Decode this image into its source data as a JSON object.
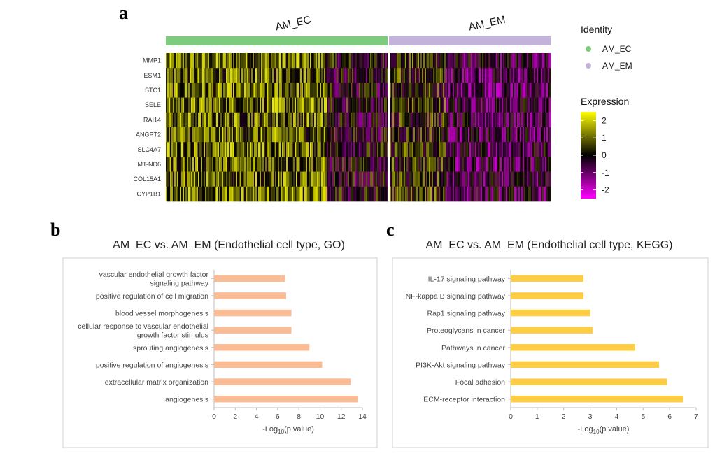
{
  "panels": {
    "a": "a",
    "b": "b",
    "c": "c"
  },
  "chart_data": [
    {
      "type": "heatmap",
      "groups": [
        "AM_EC",
        "AM_EM"
      ],
      "group_colors": [
        "#7dcb7d",
        "#c3b3da"
      ],
      "genes": [
        "MMP1",
        "ESM1",
        "STC1",
        "SELE",
        "RAI14",
        "ANGPT2",
        "SLC4A7",
        "MT-ND6",
        "COL15A1",
        "CYP1B1"
      ],
      "legend": {
        "identity_title": "Identity",
        "identity_items": [
          "AM_EC",
          "AM_EM"
        ],
        "expression_title": "Expression",
        "scale_ticks": [
          "2",
          "1",
          "0",
          "-1",
          "-2"
        ],
        "scale_range": [
          -2.5,
          2.5
        ],
        "colors": {
          "high": "#ffff00",
          "mid": "#000000",
          "low": "#ff00ff"
        }
      }
    },
    {
      "type": "bar",
      "orientation": "horizontal",
      "title": "AM_EC vs. AM_EM (Endothelial cell type, GO)",
      "categories": [
        "vascular endothelial growth factor signaling pathway",
        "positive regulation of cell migration",
        "blood vessel morphogenesis",
        "cellular response to vascular endothelial growth factor stimulus",
        "sprouting angiogenesis",
        "positive regulation of angiogenesis",
        "extracellular matrix organization",
        "angiogenesis"
      ],
      "category_lines": [
        [
          "vascular endothelial growth factor",
          "signaling pathway"
        ],
        [
          "positive regulation of cell migration"
        ],
        [
          "blood vessel morphogenesis"
        ],
        [
          "cellular response to vascular endothelial",
          "growth factor stimulus"
        ],
        [
          "sprouting angiogenesis"
        ],
        [
          "positive regulation of angiogenesis"
        ],
        [
          "extracellular matrix organization"
        ],
        [
          "angiogenesis"
        ]
      ],
      "values": [
        6.7,
        6.8,
        7.3,
        7.3,
        9.0,
        10.2,
        12.9,
        13.6
      ],
      "xlim": [
        0,
        14
      ],
      "xticks": [
        "0",
        "2",
        "4",
        "6",
        "8",
        "10",
        "12",
        "14"
      ],
      "xlabel_pre": "-Log",
      "xlabel_sub": "10",
      "xlabel_post": "(p value)",
      "color": "#f9bc94"
    },
    {
      "type": "bar",
      "orientation": "horizontal",
      "title": "AM_EC vs. AM_EM (Endothelial cell type, KEGG)",
      "categories": [
        "IL-17 signaling pathway",
        "NF-kappa B signaling pathway",
        "Rap1 signaling pathway",
        "Proteoglycans in cancer",
        "Pathways in cancer",
        "PI3K-Akt signaling pathway",
        "Focal adhesion",
        "ECM-receptor interaction"
      ],
      "category_lines": [
        [
          "IL-17 signaling pathway"
        ],
        [
          "NF-kappa B signaling pathway"
        ],
        [
          "Rap1 signaling pathway"
        ],
        [
          "Proteoglycans in cancer"
        ],
        [
          "Pathways in cancer"
        ],
        [
          "PI3K-Akt signaling pathway"
        ],
        [
          "Focal adhesion"
        ],
        [
          "ECM-receptor interaction"
        ]
      ],
      "values": [
        2.75,
        2.75,
        3.0,
        3.1,
        4.7,
        5.6,
        5.9,
        6.5
      ],
      "xlim": [
        0,
        7
      ],
      "xticks": [
        "0",
        "1",
        "2",
        "3",
        "4",
        "5",
        "6",
        "7"
      ],
      "xlabel_pre": "-Log",
      "xlabel_sub": "10",
      "xlabel_post": "(p value)",
      "color": "#fdcd45"
    }
  ]
}
